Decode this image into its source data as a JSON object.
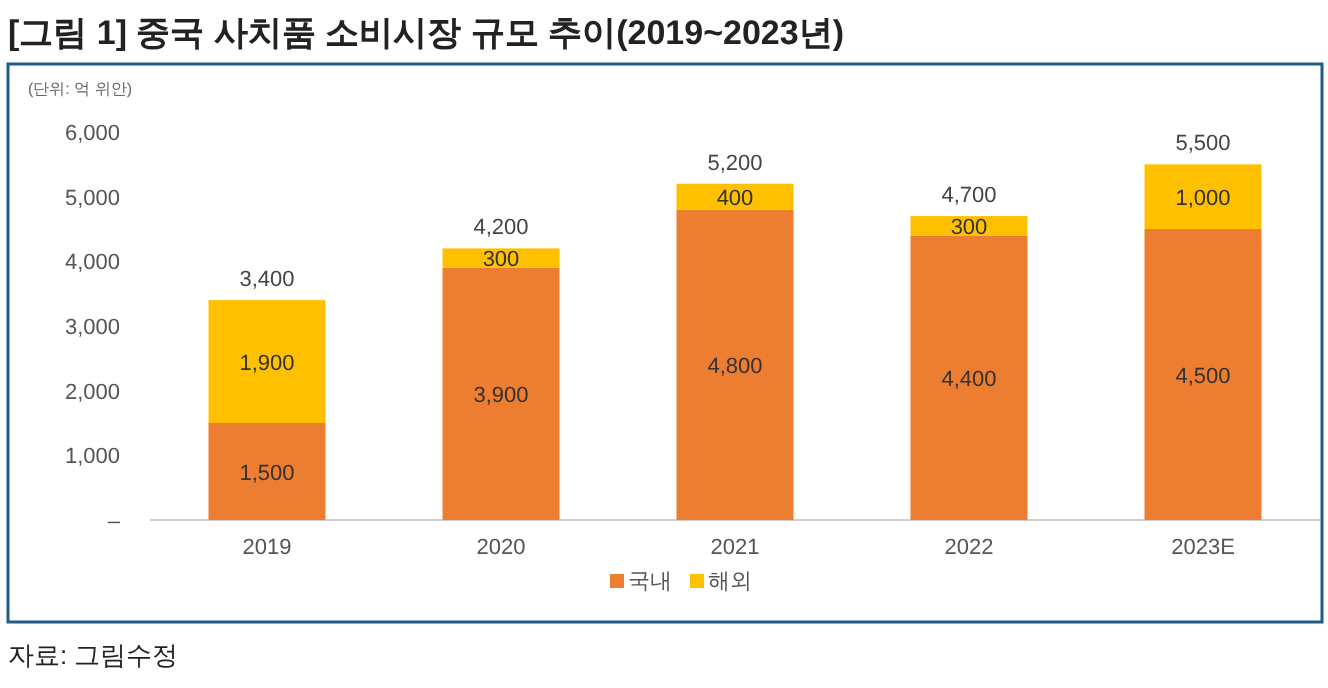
{
  "chart_data": {
    "type": "bar",
    "title": "[그림 1] 중국 사치품 소비시장 규모 추이(2019~2023년)",
    "categories": [
      "2019",
      "2020",
      "2021",
      "2022",
      "2023E"
    ],
    "stacked": true,
    "series": [
      {
        "name": "국내",
        "color": "#ed7d31",
        "values": [
          1500,
          3900,
          4800,
          4400,
          4500
        ],
        "value_labels": [
          "1,500",
          "3,900",
          "4,800",
          "4,400",
          "4,500"
        ]
      },
      {
        "name": "해외",
        "color": "#ffc000",
        "values": [
          1900,
          300,
          400,
          300,
          1000
        ],
        "value_labels": [
          "1,900",
          "300",
          "400",
          "300",
          "1,000"
        ]
      }
    ],
    "totals": [
      "3,400",
      "4,200",
      "5,200",
      "4,700",
      "5,500"
    ],
    "ylim": [
      0,
      6000
    ],
    "yticks": [
      {
        "value": 0,
        "label": "–"
      },
      {
        "value": 1000,
        "label": "1,000"
      },
      {
        "value": 2000,
        "label": "2,000"
      },
      {
        "value": 3000,
        "label": "3,000"
      },
      {
        "value": 4000,
        "label": "4,000"
      },
      {
        "value": 5000,
        "label": "5,000"
      },
      {
        "value": 6000,
        "label": "6,000"
      }
    ],
    "grid": false,
    "legend": "bottom",
    "annotations": [
      "(단위: 억 위안)",
      "자료: 그림수정"
    ]
  }
}
